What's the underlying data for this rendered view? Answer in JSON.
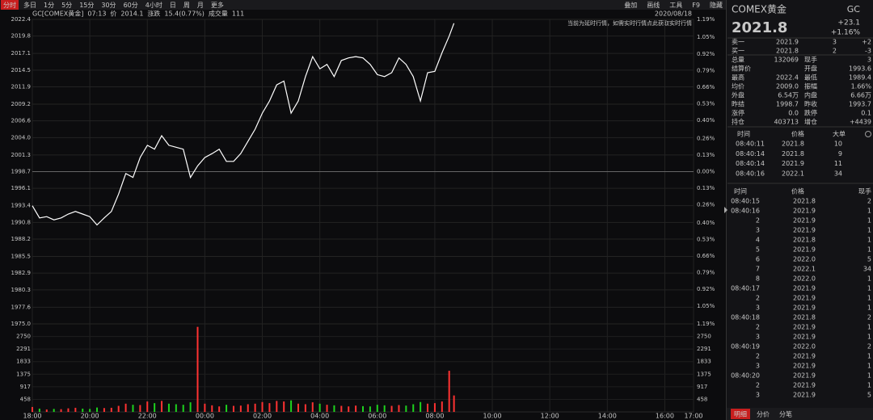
{
  "toolbar": {
    "tabs": [
      "分时",
      "多日",
      "1分",
      "5分",
      "15分",
      "30分",
      "60分",
      "4小时",
      "日",
      "周",
      "月",
      "更多"
    ],
    "tools": [
      "叠加",
      "画线",
      "工具",
      "F9",
      "隐藏"
    ]
  },
  "info": {
    "symbol": "GC[COMEX黄金]",
    "time": "07:13",
    "price_label": "价",
    "price": "2014.1",
    "change_label": "涨跌",
    "change": "15.4(0.77%)",
    "volume_label": "成交量",
    "volume": "111",
    "date": "2020/08/18",
    "note": "当前为延时行情，如需实时行情点此获取实时行情"
  },
  "chart_data": [
    {
      "type": "line",
      "color": "#ffffff",
      "grid": true,
      "x": [
        "18:00",
        "18:15",
        "18:30",
        "18:45",
        "19:00",
        "19:15",
        "19:30",
        "19:45",
        "20:00",
        "20:15",
        "20:30",
        "20:45",
        "21:00",
        "21:15",
        "21:30",
        "21:45",
        "22:00",
        "22:15",
        "22:30",
        "22:45",
        "23:00",
        "23:15",
        "23:30",
        "23:45",
        "00:00",
        "00:15",
        "00:30",
        "00:45",
        "01:00",
        "01:15",
        "01:30",
        "01:45",
        "02:00",
        "02:15",
        "02:30",
        "02:45",
        "03:00",
        "03:15",
        "03:30",
        "03:45",
        "04:00",
        "04:15",
        "04:30",
        "04:45",
        "05:00",
        "05:15",
        "05:30",
        "05:45",
        "06:00",
        "06:15",
        "06:30",
        "06:45",
        "07:00",
        "07:15",
        "07:30",
        "07:45",
        "08:00",
        "08:15",
        "08:30",
        "08:40"
      ],
      "values": [
        1993.4,
        1991.5,
        1991.7,
        1991.2,
        1991.5,
        1992.1,
        1992.5,
        1992.1,
        1991.7,
        1990.4,
        1991.5,
        1992.5,
        1995.2,
        1998.4,
        1997.8,
        2000.9,
        2002.8,
        2002.2,
        2004.3,
        2002.8,
        2002.5,
        2002.2,
        1997.8,
        1999.6,
        2000.9,
        2001.5,
        2002.2,
        2000.3,
        2000.3,
        2001.5,
        2003.4,
        2005.3,
        2007.8,
        2009.7,
        2012.2,
        2012.8,
        2007.8,
        2009.7,
        2013.5,
        2016.6,
        2014.7,
        2015.4,
        2013.5,
        2016.0,
        2016.4,
        2016.6,
        2016.4,
        2015.4,
        2013.8,
        2013.5,
        2014.1,
        2016.4,
        2015.4,
        2013.5,
        2009.7,
        2014.1,
        2014.3,
        2017.2,
        2019.8,
        2021.8
      ],
      "xlim": [
        "18:00",
        "17:00"
      ],
      "xticks": [
        "18:00",
        "20:00",
        "22:00",
        "00:00",
        "02:00",
        "04:00",
        "06:00",
        "08:00",
        "10:00",
        "12:00",
        "14:00",
        "16:00",
        "17:00"
      ],
      "ylim": [
        1975.0,
        2022.4
      ],
      "yticks": [
        2022.4,
        2019.8,
        2017.1,
        2014.5,
        2011.9,
        2009.2,
        2006.6,
        {
          "value": 2004.0,
          "label": "2004.0"
        },
        2001.3,
        1998.7,
        1996.1,
        1993.4,
        1990.8,
        1988.2,
        1985.5,
        1982.9,
        1980.3,
        1977.6,
        {
          "value": 1975.0,
          "label": "1975.0"
        }
      ],
      "y2lim": [
        -1.19,
        1.19
      ],
      "y2ticks": [
        {
          "value": 1.19,
          "label": "1.19%"
        },
        {
          "value": 1.05,
          "label": "1.05%"
        },
        {
          "value": 0.92,
          "label": "0.92%"
        },
        {
          "value": 0.79,
          "label": "0.79%"
        },
        {
          "value": 0.66,
          "label": "0.66%"
        },
        {
          "value": 0.53,
          "label": "0.53%"
        },
        {
          "value": 0.4,
          "label": "0.40%"
        },
        {
          "value": 0.26,
          "label": "0.26%"
        },
        {
          "value": 0.13,
          "label": "0.13%"
        },
        {
          "value": 0,
          "label": "0.00%"
        },
        {
          "value": -0.13,
          "label": "0.13%"
        },
        {
          "value": -0.26,
          "label": "0.26%"
        },
        {
          "value": -0.4,
          "label": "0.40%"
        },
        {
          "value": -0.53,
          "label": "0.53%"
        },
        {
          "value": -0.66,
          "label": "0.66%"
        },
        {
          "value": -0.79,
          "label": "0.79%"
        },
        {
          "value": -0.92,
          "label": "0.92%"
        },
        {
          "value": -1.05,
          "label": "1.05%"
        },
        {
          "value": -1.19,
          "label": "1.19%"
        }
      ]
    },
    {
      "type": "bar",
      "up_color": "#ff3232",
      "down_color": "#1ed21e",
      "x": [
        "18:00",
        "18:15",
        "18:30",
        "18:45",
        "19:00",
        "19:15",
        "19:30",
        "19:45",
        "20:00",
        "20:15",
        "20:30",
        "20:45",
        "21:00",
        "21:15",
        "21:30",
        "21:45",
        "22:00",
        "22:15",
        "22:30",
        "22:45",
        "23:00",
        "23:15",
        "23:30",
        "23:45",
        "00:00",
        "00:15",
        "00:30",
        "00:45",
        "01:00",
        "01:15",
        "01:30",
        "01:45",
        "02:00",
        "02:15",
        "02:30",
        "02:45",
        "03:00",
        "03:15",
        "03:30",
        "03:45",
        "04:00",
        "04:15",
        "04:30",
        "04:45",
        "05:00",
        "05:15",
        "05:30",
        "05:45",
        "06:00",
        "06:15",
        "06:30",
        "06:45",
        "07:00",
        "07:15",
        "07:30",
        "07:45",
        "08:00",
        "08:15",
        "08:30",
        "08:40"
      ],
      "values": [
        180,
        120,
        90,
        110,
        100,
        130,
        150,
        120,
        110,
        160,
        140,
        150,
        220,
        300,
        260,
        250,
        380,
        320,
        400,
        300,
        280,
        260,
        350,
        3100,
        300,
        240,
        200,
        260,
        220,
        230,
        280,
        300,
        360,
        320,
        400,
        380,
        420,
        300,
        280,
        350,
        300,
        260,
        240,
        220,
        200,
        230,
        210,
        200,
        260,
        240,
        220,
        250,
        230,
        280,
        360,
        300,
        320,
        380,
        1500,
        600
      ],
      "xlim": [
        "18:00",
        "17:00"
      ],
      "ylim": [
        0,
        3120
      ],
      "yticks": [
        2750,
        2291,
        1833,
        1375,
        917,
        458
      ]
    }
  ],
  "panel": {
    "name": "COMEX黄金",
    "code": "GC",
    "price": "2021.8",
    "change": "+23.1",
    "change_pct": "+1.16%",
    "book": [
      [
        "卖一",
        "2021.9",
        "3",
        "+2"
      ],
      [
        "买一",
        "2021.8",
        "2",
        "-3"
      ]
    ],
    "stats": [
      [
        [
          "总量",
          "132069"
        ],
        [
          "现手",
          "3"
        ]
      ],
      [
        [
          "结算价"
        ],
        [
          "开盘",
          "1993.6"
        ]
      ],
      [
        [
          "最高",
          "2022.4"
        ],
        [
          "最低",
          "1989.4"
        ]
      ],
      [
        [
          "均价",
          "2009.0"
        ],
        [
          "振幅",
          "1.66%"
        ]
      ],
      [
        [
          "外盘",
          "6.54万"
        ],
        [
          "内盘",
          "6.66万"
        ]
      ],
      [
        [
          "昨结",
          "1998.7"
        ],
        [
          "昨收",
          "1993.7"
        ]
      ],
      [
        [
          "涨停",
          "0.0"
        ],
        [
          "跌停",
          "0.1"
        ]
      ],
      [
        [
          "持仓",
          "403713"
        ],
        [
          "增仓",
          "+4439"
        ]
      ]
    ],
    "big_trades": {
      "header": [
        "时间",
        "价格",
        "大单"
      ],
      "rows": [
        [
          "08:40:11",
          "2021.8",
          "10"
        ],
        [
          "08:40:14",
          "2021.8",
          "9"
        ],
        [
          "08:40:14",
          "2021.9",
          "11"
        ],
        [
          "08:40:16",
          "2022.1",
          "34"
        ]
      ]
    },
    "ticks": {
      "header": [
        "时间",
        "价格",
        "现手"
      ],
      "rows": [
        [
          "08:40:15",
          "2021.8",
          "2"
        ],
        [
          "08:40:16",
          "2021.9",
          "1"
        ],
        [
          "2",
          "2021.9",
          "1"
        ],
        [
          "3",
          "2021.9",
          "1"
        ],
        [
          "4",
          "2021.8",
          "1"
        ],
        [
          "5",
          "2021.9",
          "1"
        ],
        [
          "6",
          "2022.0",
          "5"
        ],
        [
          "7",
          "2022.1",
          "34"
        ],
        [
          "8",
          "2022.0",
          "1"
        ],
        [
          "08:40:17",
          "2021.9",
          "1"
        ],
        [
          "2",
          "2021.9",
          "1"
        ],
        [
          "3",
          "2021.9",
          "1"
        ],
        [
          "08:40:18",
          "2021.8",
          "2"
        ],
        [
          "2",
          "2021.9",
          "1"
        ],
        [
          "3",
          "2021.9",
          "1"
        ],
        [
          "08:40:19",
          "2022.0",
          "2"
        ],
        [
          "2",
          "2021.9",
          "1"
        ],
        [
          "3",
          "2021.9",
          "1"
        ],
        [
          "08:40:20",
          "2021.9",
          "1"
        ],
        [
          "2",
          "2021.9",
          "1"
        ],
        [
          "3",
          "2021.9",
          "5"
        ]
      ]
    },
    "tabs": [
      "明细",
      "分价",
      "分笔"
    ]
  }
}
